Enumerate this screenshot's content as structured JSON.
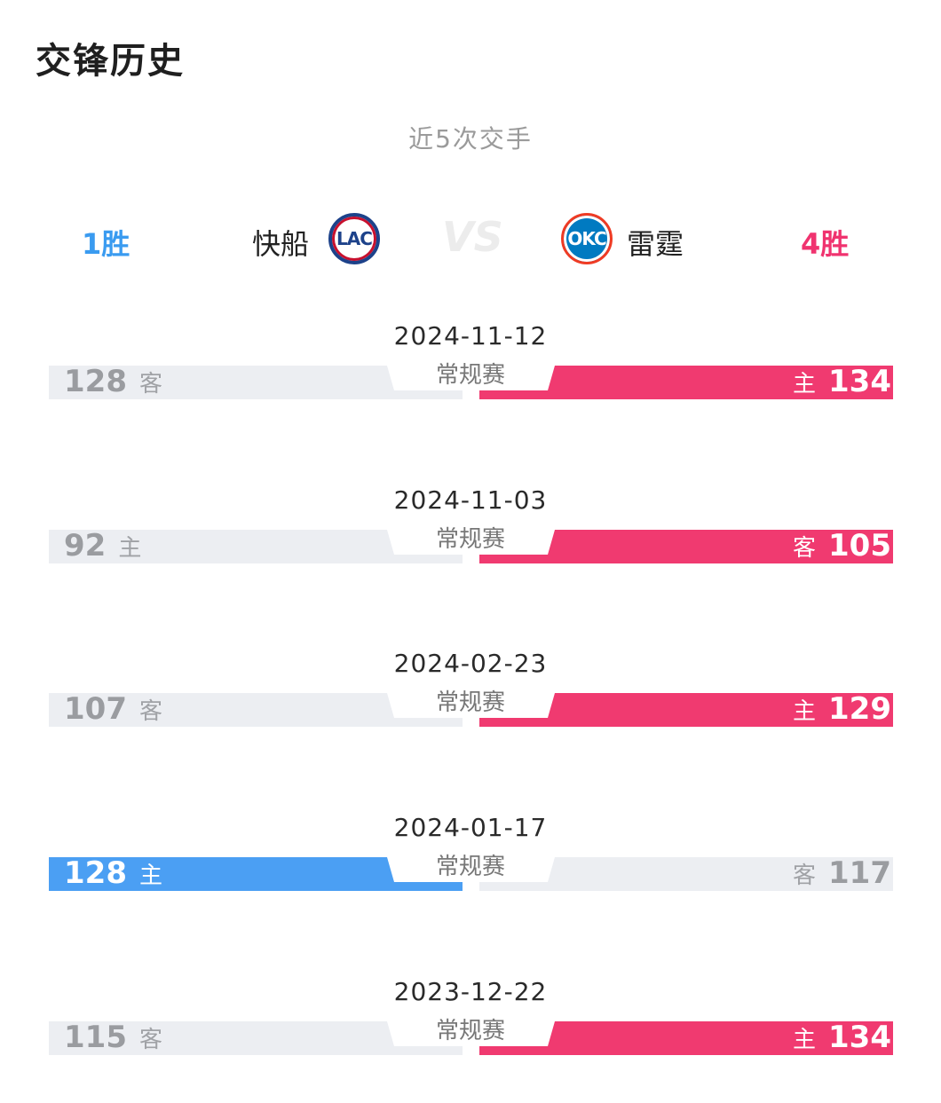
{
  "header": {
    "title": "交锋历史",
    "subtitle": "近5次交手"
  },
  "summary": {
    "left_team": {
      "name": "快船",
      "logo_text": "LAC",
      "wins": "1胜",
      "color": "#3a9bf0"
    },
    "right_team": {
      "name": "雷霆",
      "logo_text": "OKC",
      "wins": "4胜",
      "color": "#f0336f"
    },
    "vs": "VS"
  },
  "colors": {
    "win_left": "#4b9ff3",
    "win_right": "#f03a70",
    "loss_bar": "#eceef2"
  },
  "matches": [
    {
      "date": "2024-11-12",
      "type": "常规赛",
      "left_score": "128",
      "left_venue": "客",
      "right_score": "134",
      "right_venue": "主",
      "winner": "right"
    },
    {
      "date": "2024-11-03",
      "type": "常规赛",
      "left_score": "92",
      "left_venue": "主",
      "right_score": "105",
      "right_venue": "客",
      "winner": "right"
    },
    {
      "date": "2024-02-23",
      "type": "常规赛",
      "left_score": "107",
      "left_venue": "客",
      "right_score": "129",
      "right_venue": "主",
      "winner": "right"
    },
    {
      "date": "2024-01-17",
      "type": "常规赛",
      "left_score": "128",
      "left_venue": "主",
      "right_score": "117",
      "right_venue": "客",
      "winner": "left"
    },
    {
      "date": "2023-12-22",
      "type": "常规赛",
      "left_score": "115",
      "left_venue": "客",
      "right_score": "134",
      "right_venue": "主",
      "winner": "right"
    }
  ]
}
